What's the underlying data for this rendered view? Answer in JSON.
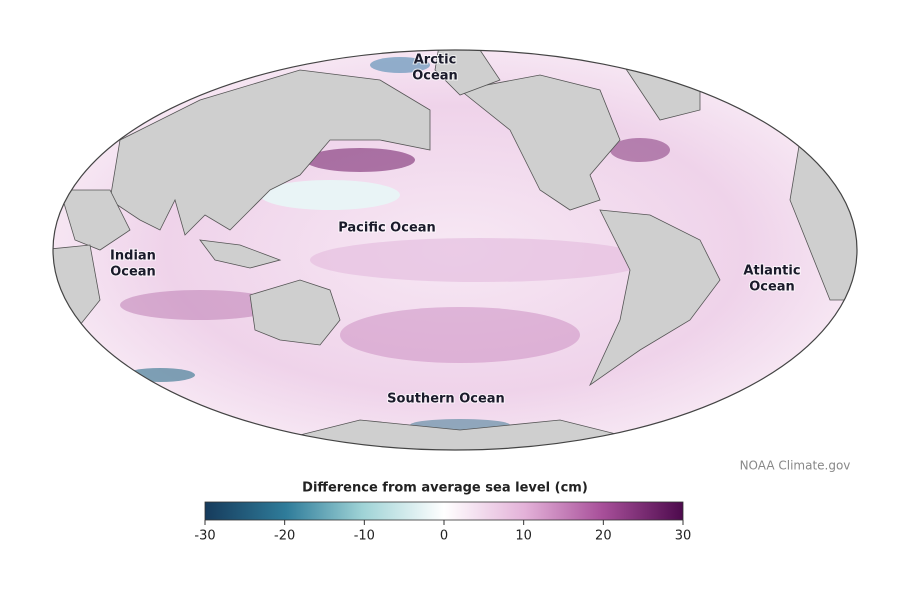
{
  "labels": [
    {
      "lines": [
        "Arctic",
        "Ocean"
      ]
    },
    {
      "lines": [
        "Pacific Ocean"
      ]
    },
    {
      "lines": [
        "Indian",
        "Ocean"
      ]
    },
    {
      "lines": [
        "Atlantic",
        "Ocean"
      ]
    },
    {
      "lines": [
        "Southern Ocean"
      ]
    }
  ],
  "colorbar": {
    "title": "Difference from average sea level (cm)",
    "range": [
      -30,
      30
    ],
    "ticks": [
      -30,
      -20,
      -10,
      0,
      10,
      20,
      30
    ]
  },
  "credit": "NOAA Climate.gov"
}
